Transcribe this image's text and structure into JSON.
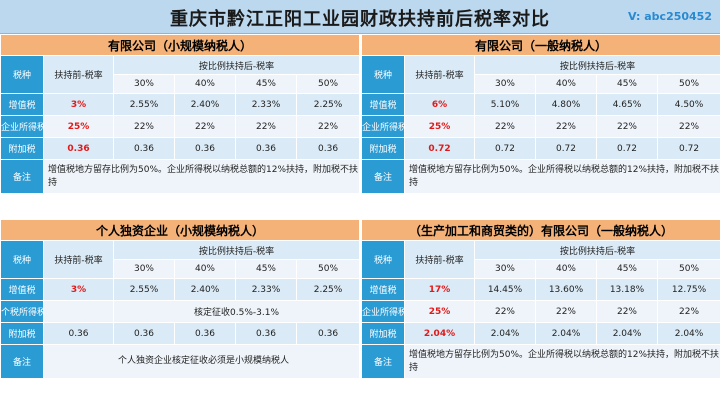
{
  "title": "重庆市黔江正阳工业园财政扶持前后税率对比",
  "watermark": "V: abc250452",
  "labels": {
    "tax_type": "税种",
    "before": "扶持前-税率",
    "after": "按比例扶持后-税率",
    "remark": "备注"
  },
  "panels": [
    {
      "title": "有限公司（小规模纳税人）",
      "pcts": [
        "30%",
        "40%",
        "45%",
        "50%"
      ],
      "rows": [
        {
          "name": "增值税",
          "before": "3%",
          "vals": [
            "2.55%",
            "2.40%",
            "2.33%",
            "2.25%"
          ]
        },
        {
          "name": "企业所得税",
          "before": "25%",
          "vals": [
            "22%",
            "22%",
            "22%",
            "22%"
          ]
        },
        {
          "name": "附加税",
          "before": "0.36",
          "vals": [
            "0.36",
            "0.36",
            "0.36",
            "0.36"
          ]
        }
      ],
      "remark": "增值税地方留存比例为50%。企业所得税以纳税总额的12%扶持，附加税不扶持"
    },
    {
      "title": "有限公司（一般纳税人）",
      "pcts": [
        "30%",
        "40%",
        "45%",
        "50%"
      ],
      "rows": [
        {
          "name": "增值税",
          "before": "6%",
          "vals": [
            "5.10%",
            "4.80%",
            "4.65%",
            "4.50%"
          ]
        },
        {
          "name": "企业所得税",
          "before": "25%",
          "vals": [
            "22%",
            "22%",
            "22%",
            "22%"
          ]
        },
        {
          "name": "附加税",
          "before": "0.72",
          "vals": [
            "0.72",
            "0.72",
            "0.72",
            "0.72"
          ]
        }
      ],
      "remark": "增值税地方留存比例为50%。企业所得税以纳税总额的12%扶持，附加税不扶持"
    },
    {
      "title": "个人独资企业（小规模纳税人）",
      "pcts": [
        "30%",
        "40%",
        "45%",
        "50%"
      ],
      "rows": [
        {
          "name": "增值税",
          "before": "3%",
          "vals": [
            "2.55%",
            "2.40%",
            "2.33%",
            "2.25%"
          ]
        },
        {
          "name": "个税所得税",
          "before": "",
          "merged": "核定征收0.5%-3.1%"
        },
        {
          "name": "附加税",
          "before": "0.36",
          "vals": [
            "0.36",
            "0.36",
            "0.36",
            "0.36"
          ]
        }
      ],
      "remark": "个人独资企业核定征收必须是小规模纳税人"
    },
    {
      "title": "（生产加工和商贸类的）有限公司（一般纳税人）",
      "pcts": [
        "30%",
        "40%",
        "45%",
        "50%"
      ],
      "rows": [
        {
          "name": "增值税",
          "before": "17%",
          "vals": [
            "14.45%",
            "13.60%",
            "13.18%",
            "12.75%"
          ]
        },
        {
          "name": "企业所得税",
          "before": "25%",
          "vals": [
            "22%",
            "22%",
            "22%",
            "22%"
          ]
        },
        {
          "name": "附加税",
          "before": "2.04%",
          "vals": [
            "2.04%",
            "2.04%",
            "2.04%",
            "2.04%"
          ]
        }
      ],
      "remark": "增值税地方留存比例为50%。企业所得税以纳税总额的12%扶持，附加税不扶持"
    }
  ]
}
